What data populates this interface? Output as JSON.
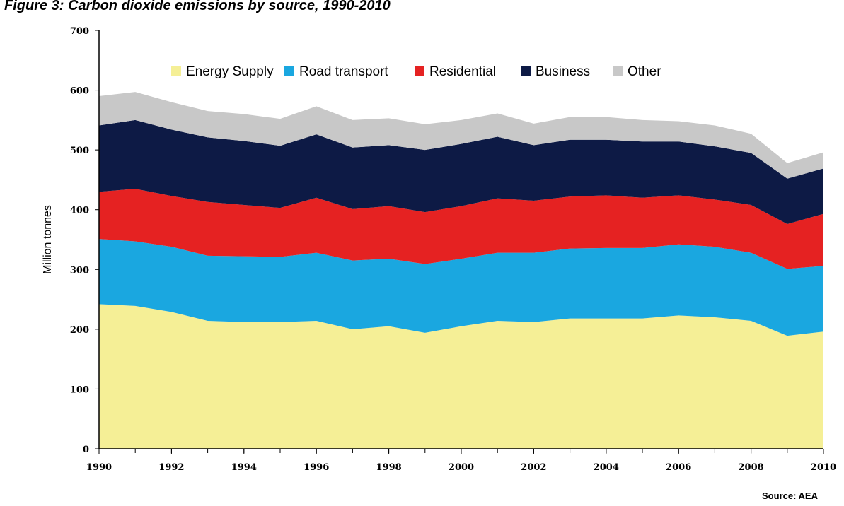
{
  "chart_data": {
    "type": "stacked_area",
    "title": "Figure 3: Carbon dioxide emissions by source, 1990-2010",
    "y_label": "Million tonnes",
    "source": "Source: AEA",
    "x": [
      1990,
      1991,
      1992,
      1993,
      1994,
      1995,
      1996,
      1997,
      1998,
      1999,
      2000,
      2001,
      2002,
      2003,
      2004,
      2005,
      2006,
      2007,
      2008,
      2009,
      2010
    ],
    "xlim": [
      1990,
      2010
    ],
    "xticks": [
      1990,
      1992,
      1994,
      1996,
      1998,
      2000,
      2002,
      2004,
      2006,
      2008,
      2010
    ],
    "ylim": [
      0,
      700
    ],
    "yticks": [
      0,
      100,
      200,
      300,
      400,
      500,
      600,
      700
    ],
    "grid": false,
    "legend": "top",
    "series": [
      {
        "name": "Energy Supply",
        "color": "#f5ef96",
        "values": [
          242,
          239,
          229,
          214,
          212,
          212,
          214,
          200,
          205,
          194,
          205,
          214,
          212,
          218,
          218,
          218,
          223,
          220,
          214,
          189,
          196
        ]
      },
      {
        "name": "Road transport",
        "color": "#1aa7e0",
        "values": [
          109,
          108,
          109,
          109,
          110,
          109,
          114,
          115,
          113,
          115,
          113,
          114,
          116,
          117,
          118,
          118,
          119,
          118,
          114,
          112,
          110
        ]
      },
      {
        "name": "Residential",
        "color": "#e52222",
        "values": [
          79,
          88,
          85,
          90,
          86,
          82,
          92,
          86,
          88,
          87,
          88,
          91,
          87,
          87,
          88,
          84,
          82,
          79,
          80,
          75,
          87
        ]
      },
      {
        "name": "Business",
        "color": "#0d1a45",
        "values": [
          111,
          115,
          111,
          108,
          107,
          104,
          106,
          103,
          102,
          104,
          104,
          103,
          93,
          95,
          93,
          94,
          90,
          89,
          87,
          76,
          76
        ]
      },
      {
        "name": "Other",
        "color": "#c8c8c8",
        "values": [
          49,
          47,
          46,
          44,
          45,
          45,
          47,
          46,
          45,
          43,
          40,
          39,
          36,
          38,
          38,
          36,
          34,
          35,
          32,
          26,
          27
        ]
      }
    ]
  }
}
